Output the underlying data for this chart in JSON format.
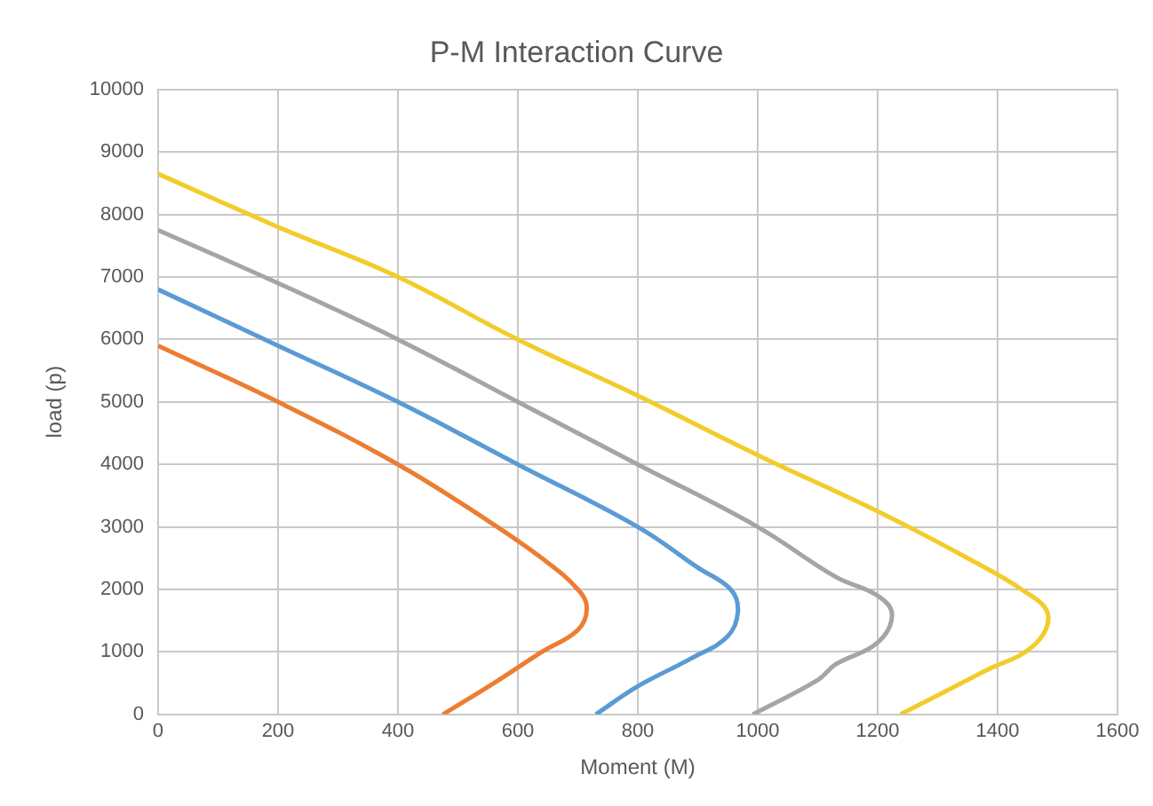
{
  "chart_data": {
    "type": "line",
    "title": "P-M Interaction Curve",
    "xlabel": "Moment (M)",
    "ylabel": "load (p)",
    "xlim": [
      0,
      1600
    ],
    "xticks": [
      0,
      200,
      400,
      600,
      800,
      1000,
      1200,
      1400,
      1600
    ],
    "ylim": [
      0,
      10000
    ],
    "yticks": [
      0,
      1000,
      2000,
      3000,
      4000,
      5000,
      6000,
      7000,
      8000,
      9000,
      10000
    ],
    "grid": true,
    "legend": false,
    "marker": "none",
    "line_style": "solid",
    "series": [
      {
        "color": "#ed7d31",
        "x": [
          0,
          200,
          400,
          550,
          640,
          700,
          715,
          700,
          640,
          560,
          475
        ],
        "values": [
          5900,
          5000,
          4000,
          3100,
          2500,
          2000,
          1700,
          1350,
          1000,
          500,
          0
        ]
      },
      {
        "color": "#5b9bd5",
        "x": [
          0,
          200,
          400,
          600,
          800,
          900,
          955,
          967,
          950,
          890,
          800,
          730
        ],
        "values": [
          6800,
          5900,
          5000,
          4000,
          3000,
          2350,
          2000,
          1650,
          1250,
          900,
          450,
          0
        ]
      },
      {
        "color": "#a5a5a5",
        "x": [
          0,
          200,
          400,
          600,
          800,
          1000,
          1130,
          1200,
          1224,
          1200,
          1130,
          1100,
          992
        ],
        "values": [
          7750,
          6900,
          6000,
          5000,
          4000,
          3000,
          2200,
          1900,
          1600,
          1150,
          800,
          550,
          0
        ]
      },
      {
        "color": "#f2cc2a",
        "x": [
          0,
          200,
          400,
          600,
          800,
          1000,
          1200,
          1350,
          1440,
          1484,
          1460,
          1380,
          1238
        ],
        "values": [
          8650,
          7800,
          7000,
          6000,
          5100,
          4150,
          3250,
          2500,
          2000,
          1600,
          1100,
          700,
          0
        ]
      }
    ]
  }
}
